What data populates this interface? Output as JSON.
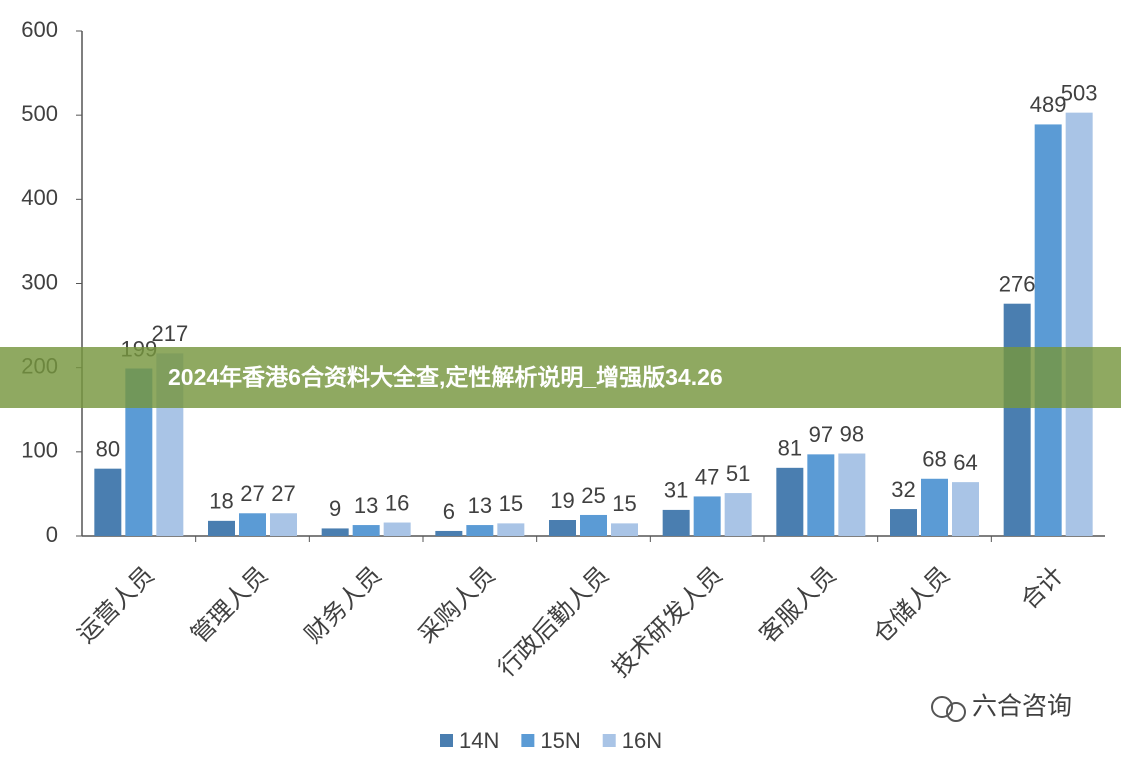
{
  "chart_data": {
    "type": "bar",
    "categories": [
      "运营人员",
      "管理人员",
      "财务人员",
      "采购人员",
      "行政后勤人员",
      "技术研发人员",
      "客服人员",
      "仓储人员",
      "合计"
    ],
    "series": [
      {
        "name": "14N",
        "color": "#4a7eb0",
        "values": [
          80,
          18,
          9,
          6,
          19,
          31,
          81,
          32,
          276
        ]
      },
      {
        "name": "15N",
        "color": "#5b9bd5",
        "values": [
          199,
          27,
          13,
          13,
          25,
          47,
          97,
          68,
          489
        ]
      },
      {
        "name": "16N",
        "color": "#a9c4e6",
        "values": [
          217,
          27,
          16,
          15,
          15,
          51,
          98,
          64,
          503
        ]
      }
    ],
    "ylim": [
      0,
      600
    ],
    "yticks": [
      0,
      100,
      200,
      300,
      400,
      500,
      600
    ],
    "grid": false,
    "legend": "bottom"
  },
  "banner": {
    "text": "2024年香港6合资料大全查,定性解析说明_增强版34.26"
  },
  "watermark": {
    "text": "六合咨询"
  }
}
